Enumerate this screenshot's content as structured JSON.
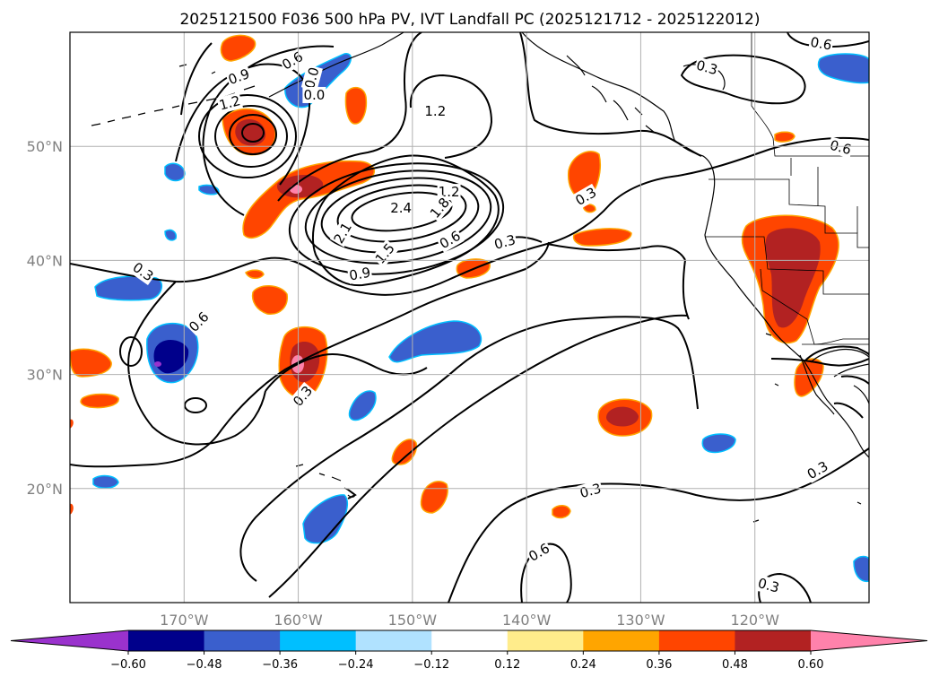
{
  "title": "2025121500 F036 500 hPa PV, IVT Landfall PC (2025121712 - 2025122012)",
  "map": {
    "lon_range": [
      -180,
      -110
    ],
    "lat_range": [
      10,
      60
    ],
    "lat_ticks": [
      {
        "value": 50,
        "label": "50°N"
      },
      {
        "value": 40,
        "label": "40°N"
      },
      {
        "value": 30,
        "label": "30°N"
      },
      {
        "value": 20,
        "label": "20°N"
      }
    ],
    "lon_ticks": [
      {
        "value": -170,
        "label": "170°W"
      },
      {
        "value": -160,
        "label": "160°W"
      },
      {
        "value": -150,
        "label": "150°W"
      },
      {
        "value": -140,
        "label": "140°W"
      },
      {
        "value": -130,
        "label": "130°W"
      },
      {
        "value": -120,
        "label": "120°W"
      }
    ],
    "gridlines": true
  },
  "colorbar": {
    "ticks": [
      "−0.60",
      "−0.48",
      "−0.36",
      "−0.24",
      "−0.12",
      "0.12",
      "0.24",
      "0.36",
      "0.48",
      "0.60"
    ],
    "colors": [
      "#9a32cd",
      "#00008b",
      "#3a5fcd",
      "#00bfff",
      "#b0e2ff",
      "#ffffff",
      "#ffec8b",
      "#ffa500",
      "#ff4500",
      "#b22222",
      "#ff82ab"
    ],
    "extend": "both"
  },
  "contour_labels": [
    {
      "text": "0.9",
      "lon": -165.2,
      "lat": 56.1,
      "angle": -20
    },
    {
      "text": "0.6",
      "lon": -160.5,
      "lat": 57.5,
      "angle": -30
    },
    {
      "text": "0.0",
      "lon": -158.8,
      "lat": 56.0,
      "angle": -75
    },
    {
      "text": "0.0",
      "lon": -158.6,
      "lat": 54.5,
      "angle": 0
    },
    {
      "text": "1.2",
      "lon": -166.0,
      "lat": 53.8,
      "angle": -15
    },
    {
      "text": "1.2",
      "lon": -148.0,
      "lat": 53.1,
      "angle": 0
    },
    {
      "text": "1.2",
      "lon": -146.8,
      "lat": 46.0,
      "angle": 0
    },
    {
      "text": "2.4",
      "lon": -151.0,
      "lat": 44.6,
      "angle": 0
    },
    {
      "text": "1.8",
      "lon": -147.6,
      "lat": 44.6,
      "angle": -50
    },
    {
      "text": "2.1",
      "lon": -156.1,
      "lat": 42.4,
      "angle": -60
    },
    {
      "text": "1.5",
      "lon": -152.4,
      "lat": 40.6,
      "angle": -50
    },
    {
      "text": "0.6",
      "lon": -146.7,
      "lat": 41.8,
      "angle": -30
    },
    {
      "text": "0.3",
      "lon": -141.9,
      "lat": 41.6,
      "angle": -15
    },
    {
      "text": "0.9",
      "lon": -154.6,
      "lat": 38.8,
      "angle": -10
    },
    {
      "text": "0.3",
      "lon": -173.6,
      "lat": 39.0,
      "angle": 35
    },
    {
      "text": "0.6",
      "lon": -168.7,
      "lat": 34.6,
      "angle": -45
    },
    {
      "text": "0.3",
      "lon": -134.8,
      "lat": 45.6,
      "angle": -30
    },
    {
      "text": "0.3",
      "lon": -159.6,
      "lat": 28.1,
      "angle": -50
    },
    {
      "text": "0.3",
      "lon": -134.4,
      "lat": 19.8,
      "angle": -15
    },
    {
      "text": "0.6",
      "lon": -138.9,
      "lat": 14.4,
      "angle": -30
    },
    {
      "text": "0.3",
      "lon": -118.8,
      "lat": 11.5,
      "angle": 15
    },
    {
      "text": "0.3",
      "lon": -114.5,
      "lat": 21.6,
      "angle": -30
    },
    {
      "text": "0.3",
      "lon": -124.2,
      "lat": 56.9,
      "angle": 15
    },
    {
      "text": "0.6",
      "lon": -114.2,
      "lat": 59.0,
      "angle": 10
    },
    {
      "text": "0.6",
      "lon": -112.5,
      "lat": 49.9,
      "angle": 15
    }
  ]
}
